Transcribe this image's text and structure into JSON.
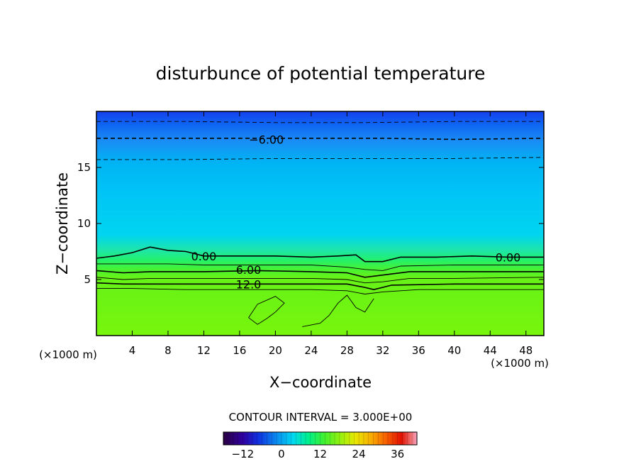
{
  "chart_data": {
    "type": "contour",
    "title": "disturbunce of potential temperature",
    "xlabel": "X−coordinate",
    "ylabel": "Z−coordinate",
    "x_unit": "(×1000 m)",
    "y_unit": "(×1000 m)",
    "xlim": [
      0,
      50
    ],
    "ylim": [
      0,
      20
    ],
    "x_ticks": [
      4,
      8,
      12,
      16,
      20,
      24,
      28,
      32,
      36,
      40,
      44,
      48
    ],
    "y_ticks": [
      5,
      10,
      15
    ],
    "contour_labels": [
      {
        "text": "−6.00",
        "x": 19,
        "z": 17.5
      },
      {
        "text": "0.00",
        "x": 12,
        "z": 7.1
      },
      {
        "text": "0.00",
        "x": 46,
        "z": 7.0
      },
      {
        "text": "6.00",
        "x": 17,
        "z": 5.9
      },
      {
        "text": "12.0",
        "x": 17,
        "z": 4.6
      }
    ],
    "contour_lines": [
      {
        "value": -9,
        "style": "dashed",
        "points": [
          [
            0,
            19.1
          ],
          [
            10,
            19.1
          ],
          [
            20,
            19.0
          ],
          [
            30,
            19.0
          ],
          [
            40,
            19.1
          ],
          [
            50,
            19.1
          ]
        ]
      },
      {
        "value": -6,
        "style": "dashed",
        "points": [
          [
            0,
            17.6
          ],
          [
            10,
            17.6
          ],
          [
            18,
            17.6
          ],
          [
            24,
            17.6
          ],
          [
            32,
            17.6
          ],
          [
            40,
            17.5
          ],
          [
            50,
            17.6
          ]
        ]
      },
      {
        "value": -3,
        "style": "dashed",
        "points": [
          [
            0,
            15.7
          ],
          [
            10,
            15.7
          ],
          [
            20,
            15.8
          ],
          [
            30,
            15.8
          ],
          [
            40,
            15.8
          ],
          [
            50,
            15.9
          ]
        ]
      },
      {
        "value": 0,
        "style": "solid",
        "points": [
          [
            0,
            6.9
          ],
          [
            2,
            7.1
          ],
          [
            4,
            7.4
          ],
          [
            6,
            7.9
          ],
          [
            8,
            7.6
          ],
          [
            10,
            7.5
          ],
          [
            12,
            7.1
          ],
          [
            16,
            7.1
          ],
          [
            20,
            7.1
          ],
          [
            24,
            7.0
          ],
          [
            27,
            7.1
          ],
          [
            29,
            7.2
          ],
          [
            30,
            6.6
          ],
          [
            32,
            6.6
          ],
          [
            34,
            7.0
          ],
          [
            38,
            7.0
          ],
          [
            42,
            7.1
          ],
          [
            46,
            7.0
          ],
          [
            50,
            7.0
          ]
        ]
      },
      {
        "value": 3,
        "style": "solid",
        "points": [
          [
            0,
            6.4
          ],
          [
            4,
            6.4
          ],
          [
            8,
            6.4
          ],
          [
            12,
            6.3
          ],
          [
            18,
            6.3
          ],
          [
            24,
            6.3
          ],
          [
            28,
            6.1
          ],
          [
            30,
            5.9
          ],
          [
            32,
            5.8
          ],
          [
            34,
            6.2
          ],
          [
            40,
            6.3
          ],
          [
            50,
            6.3
          ]
        ]
      },
      {
        "value": 6,
        "style": "solid",
        "points": [
          [
            0,
            5.8
          ],
          [
            3,
            5.6
          ],
          [
            6,
            5.7
          ],
          [
            12,
            5.7
          ],
          [
            18,
            5.8
          ],
          [
            24,
            5.7
          ],
          [
            28,
            5.6
          ],
          [
            30,
            5.2
          ],
          [
            32,
            5.4
          ],
          [
            35,
            5.7
          ],
          [
            40,
            5.7
          ],
          [
            50,
            5.7
          ]
        ]
      },
      {
        "value": 9,
        "style": "solid",
        "points": [
          [
            0,
            5.2
          ],
          [
            3,
            5.0
          ],
          [
            6,
            5.1
          ],
          [
            12,
            5.1
          ],
          [
            18,
            5.1
          ],
          [
            24,
            5.1
          ],
          [
            28,
            5.0
          ],
          [
            30,
            4.7
          ],
          [
            32,
            4.8
          ],
          [
            35,
            5.1
          ],
          [
            40,
            5.1
          ],
          [
            50,
            5.2
          ]
        ]
      },
      {
        "value": 12,
        "style": "solid",
        "points": [
          [
            0,
            4.7
          ],
          [
            3,
            4.6
          ],
          [
            6,
            4.6
          ],
          [
            12,
            4.6
          ],
          [
            18,
            4.6
          ],
          [
            24,
            4.6
          ],
          [
            28,
            4.6
          ],
          [
            30,
            4.3
          ],
          [
            31,
            4.1
          ],
          [
            33,
            4.5
          ],
          [
            40,
            4.6
          ],
          [
            50,
            4.6
          ]
        ]
      },
      {
        "value": 15,
        "style": "solid",
        "points": [
          [
            0,
            4.2
          ],
          [
            4,
            4.2
          ],
          [
            10,
            4.1
          ],
          [
            18,
            4.1
          ],
          [
            24,
            4.1
          ],
          [
            28,
            4.0
          ],
          [
            30,
            3.7
          ],
          [
            32,
            3.9
          ],
          [
            36,
            4.1
          ],
          [
            44,
            4.1
          ],
          [
            50,
            4.1
          ]
        ]
      },
      {
        "value": 15,
        "style": "solid",
        "points": [
          [
            17,
            1.6
          ],
          [
            18,
            2.8
          ],
          [
            20,
            3.5
          ],
          [
            21,
            2.9
          ],
          [
            20,
            2.1
          ],
          [
            19,
            1.5
          ],
          [
            18,
            1.0
          ],
          [
            17,
            1.6
          ]
        ]
      },
      {
        "value": 15,
        "style": "solid",
        "points": [
          [
            23,
            0.8
          ],
          [
            25,
            1.1
          ],
          [
            26,
            1.8
          ],
          [
            27,
            2.9
          ],
          [
            28,
            3.6
          ],
          [
            29,
            2.5
          ],
          [
            30,
            2.1
          ],
          [
            31,
            3.3
          ]
        ]
      }
    ],
    "contour_interval": "CONTOUR INTERVAL = 3.000E+00",
    "colorbar": {
      "min": -18,
      "max": 42,
      "ticks": [
        -12,
        0,
        12,
        24,
        36
      ]
    }
  }
}
